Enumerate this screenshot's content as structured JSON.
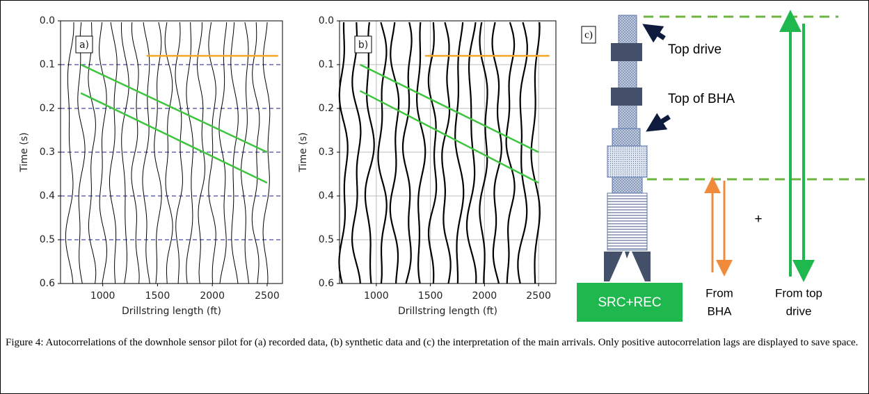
{
  "chart_data": [
    {
      "type": "wiggle",
      "panel_label": "a)",
      "xlabel": "Drillstring length (ft)",
      "ylabel": "Time (s)",
      "xlim": [
        615,
        2640
      ],
      "ylim": [
        0.6,
        0.0
      ],
      "xticks": [
        1000,
        1500,
        2000,
        2500
      ],
      "yticks": [
        {
          "value": 0,
          "label": "0.0"
        },
        0.1,
        0.2,
        0.3,
        0.4,
        0.5,
        0.6
      ],
      "grid": "dashed",
      "series": [
        {
          "color": "#3ec43e",
          "x": [
            800,
            2500
          ],
          "values": [
            0.1,
            0.3
          ]
        },
        {
          "color": "#3ec43e",
          "x": [
            800,
            2500
          ],
          "values": [
            0.165,
            0.37
          ]
        },
        {
          "color": "#f5a623",
          "x": [
            1400,
            2600
          ],
          "values": [
            0.08,
            0.08
          ]
        }
      ]
    },
    {
      "type": "wiggle",
      "panel_label": "b)",
      "xlabel": "Drillstring length (ft)",
      "ylabel": "Time (s)",
      "xlim": [
        660,
        2660
      ],
      "ylim": [
        0.6,
        0.0
      ],
      "xticks": [
        1000,
        1500,
        2000,
        2500
      ],
      "yticks": [
        {
          "value": 0,
          "label": "0.0"
        },
        0.1,
        0.2,
        0.3,
        0.4,
        0.5,
        0.6
      ],
      "grid": "solid",
      "series": [
        {
          "color": "#3ec43e",
          "x": [
            850,
            2500
          ],
          "values": [
            0.1,
            0.3
          ]
        },
        {
          "color": "#3ec43e",
          "x": [
            850,
            2500
          ],
          "values": [
            0.16,
            0.37
          ]
        },
        {
          "color": "#f5a623",
          "x": [
            1450,
            2600
          ],
          "values": [
            0.08,
            0.08
          ]
        }
      ]
    }
  ],
  "diagram": {
    "panel_label": "c)",
    "top_drive": "Top drive",
    "top_of_bha": "Top of BHA",
    "source": "SRC+REC",
    "plus": "+",
    "from_bha": [
      "From",
      "BHA"
    ],
    "from_top_drive": [
      "From top",
      "drive"
    ]
  },
  "caption": "Figure 4: Autocorrelations of the downhole sensor pilot for (a) recorded data, (b) synthetic data and (c) the interpretation of the main arrivals. Only positive autocorrelation lags are displayed to save space."
}
